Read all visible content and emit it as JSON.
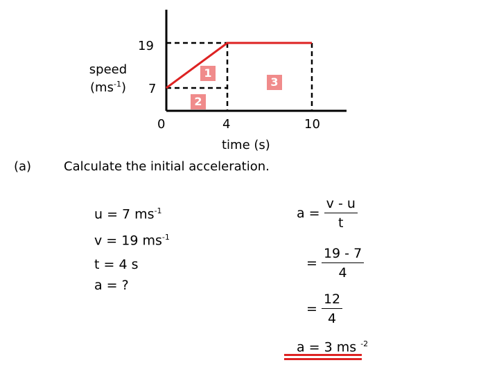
{
  "graph": {
    "y_label_line1": "speed",
    "y_label_line2": "(ms",
    "y_label_exp": "-1",
    "y_label_close": ")",
    "y_tick_19": "19",
    "y_tick_7": "7",
    "origin": "0",
    "x_tick_4": "4",
    "x_tick_10": "10",
    "x_label": "time (s)",
    "region_1": "1",
    "region_2": "2",
    "region_3": "3",
    "colors": {
      "line": "#dd2222",
      "badge": "#f08b8b",
      "axis": "#000000",
      "dash": "#000000"
    }
  },
  "question": {
    "part": "(a)",
    "text": "Calculate the initial acceleration."
  },
  "given": {
    "u": "u = 7 ms",
    "u_exp": "-1",
    "v": "v = 19 ms",
    "v_exp": "-1",
    "t": "t = 4 s",
    "a": "a = ?"
  },
  "working": {
    "formula_lhs": "a =",
    "formula_num": "v - u",
    "formula_den": "t",
    "step1_eq": "=",
    "step1_num": "19 - 7",
    "step1_den": "4",
    "step2_eq": "=",
    "step2_num": "12",
    "step2_den": "4",
    "answer": "a = 3 ms",
    "answer_exp": "-2"
  }
}
